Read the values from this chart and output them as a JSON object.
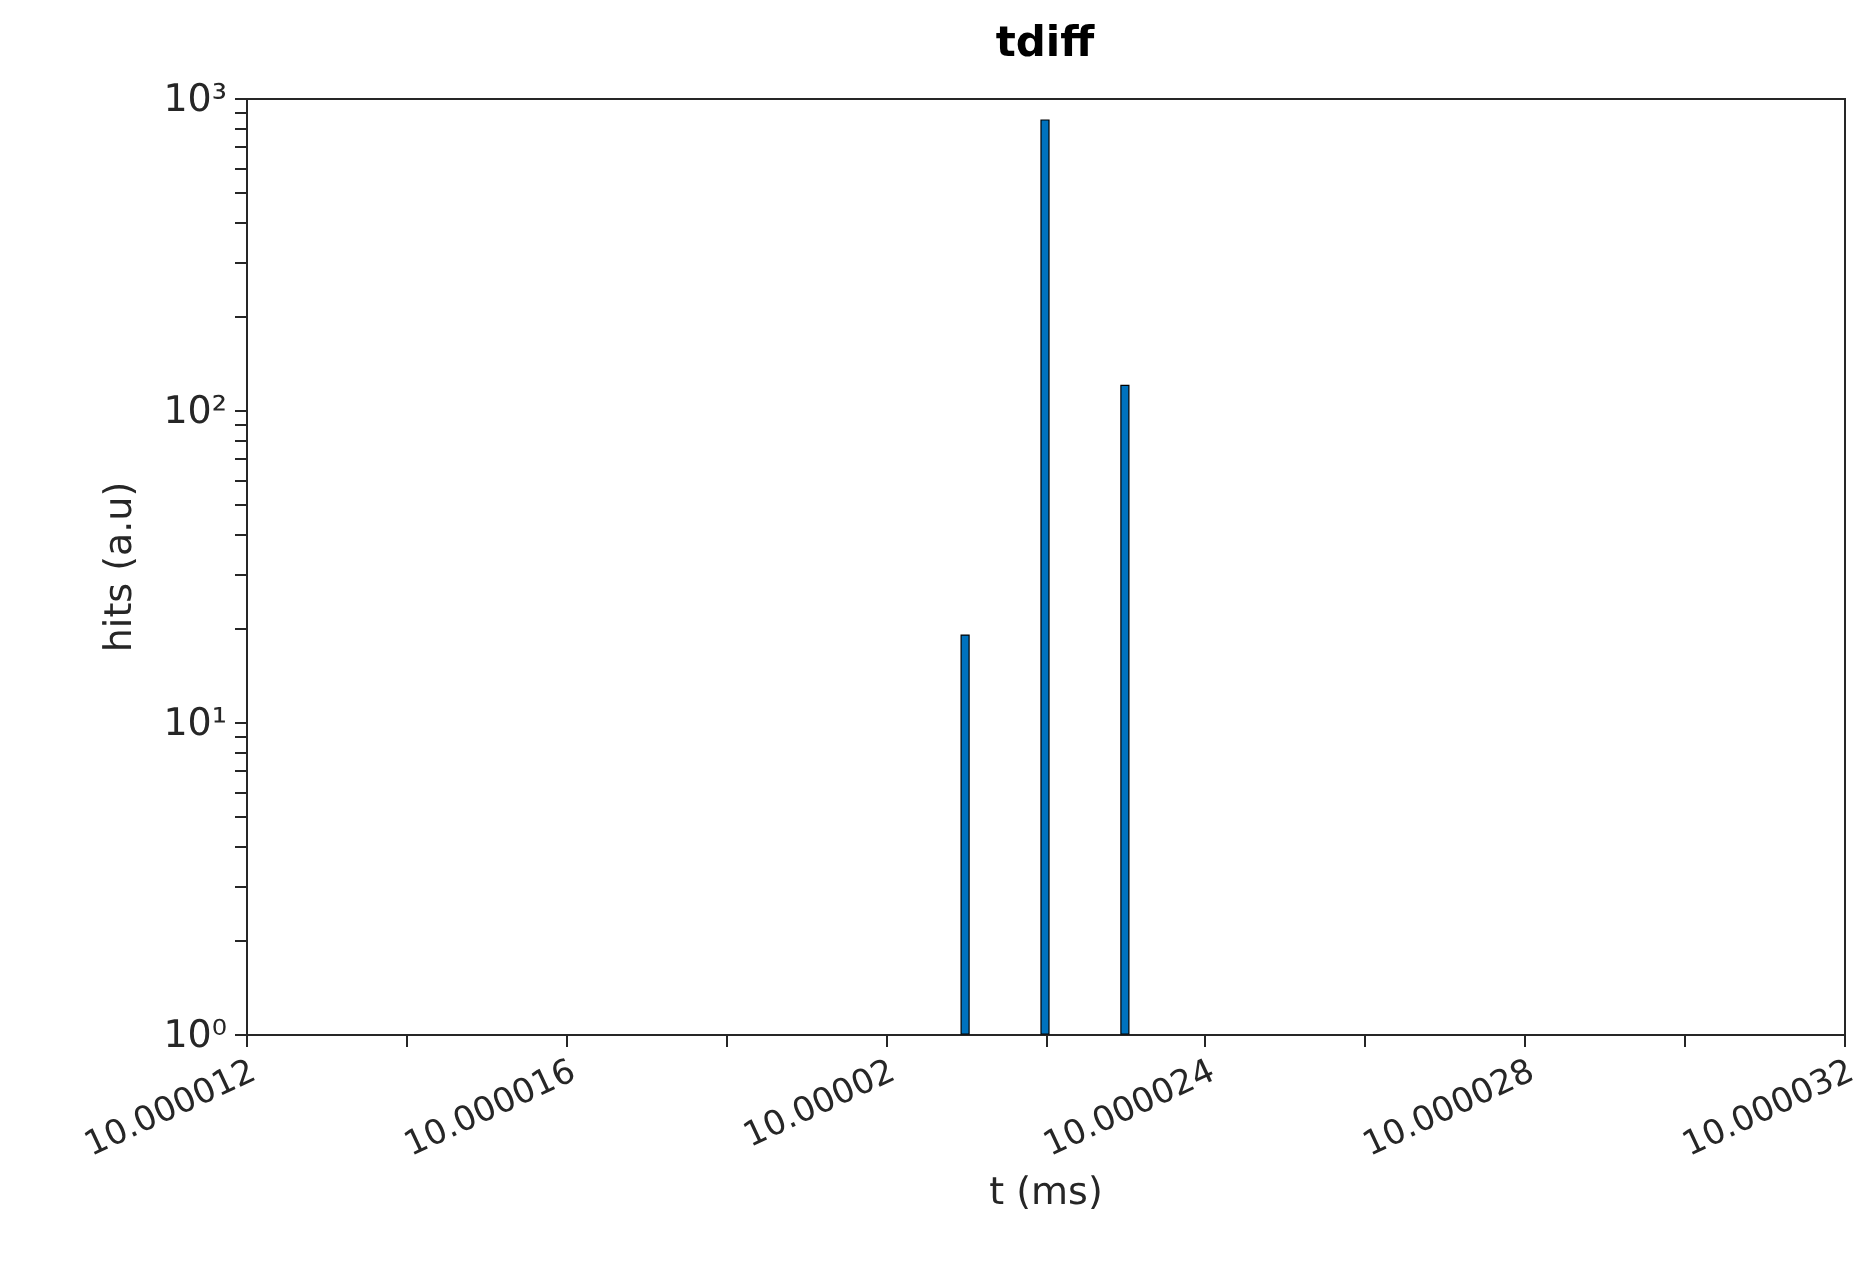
{
  "chart_data": {
    "type": "histogram",
    "title": "tdiff",
    "xlabel": "t (ms)",
    "ylabel": "hits (a.u)",
    "bins": [
      10.00002095,
      10.00002105,
      10.00002195,
      10.00002205,
      10.00002295,
      10.00002305
    ],
    "values": [
      19,
      null,
      850,
      null,
      120
    ],
    "color": "#0072bd",
    "log": "y",
    "xlim": [
      10.000012,
      10.000032
    ],
    "xticks": [
      10.000012,
      {
        "value": 10.000014,
        "label": null
      },
      10.000016,
      {
        "value": 10.000018,
        "label": null
      },
      10.00002,
      {
        "value": 10.000022,
        "label": null
      },
      10.000024,
      {
        "value": 10.000026,
        "label": null
      },
      10.000028,
      {
        "value": 10.00003,
        "label": null
      },
      10.000032
    ],
    "ylim": [
      1,
      1000
    ],
    "yticks": [
      {
        "value": 1,
        "label": "10⁰"
      },
      {
        "value": 2,
        "label": null
      },
      {
        "value": 3,
        "label": null
      },
      {
        "value": 4,
        "label": null
      },
      {
        "value": 5,
        "label": null
      },
      {
        "value": 6,
        "label": null
      },
      {
        "value": 7,
        "label": null
      },
      {
        "value": 8,
        "label": null
      },
      {
        "value": 9,
        "label": null
      },
      {
        "value": 10,
        "label": "10¹"
      },
      {
        "value": 20,
        "label": null
      },
      {
        "value": 30,
        "label": null
      },
      {
        "value": 40,
        "label": null
      },
      {
        "value": 50,
        "label": null
      },
      {
        "value": 60,
        "label": null
      },
      {
        "value": 70,
        "label": null
      },
      {
        "value": 80,
        "label": null
      },
      {
        "value": 90,
        "label": null
      },
      {
        "value": 100,
        "label": "10²"
      },
      {
        "value": 200,
        "label": null
      },
      {
        "value": 300,
        "label": null
      },
      {
        "value": 400,
        "label": null
      },
      {
        "value": 500,
        "label": null
      },
      {
        "value": 600,
        "label": null
      },
      {
        "value": 700,
        "label": null
      },
      {
        "value": 800,
        "label": null
      },
      {
        "value": 900,
        "label": null
      },
      {
        "value": 1000,
        "label": "10³"
      }
    ],
    "grid": false
  }
}
